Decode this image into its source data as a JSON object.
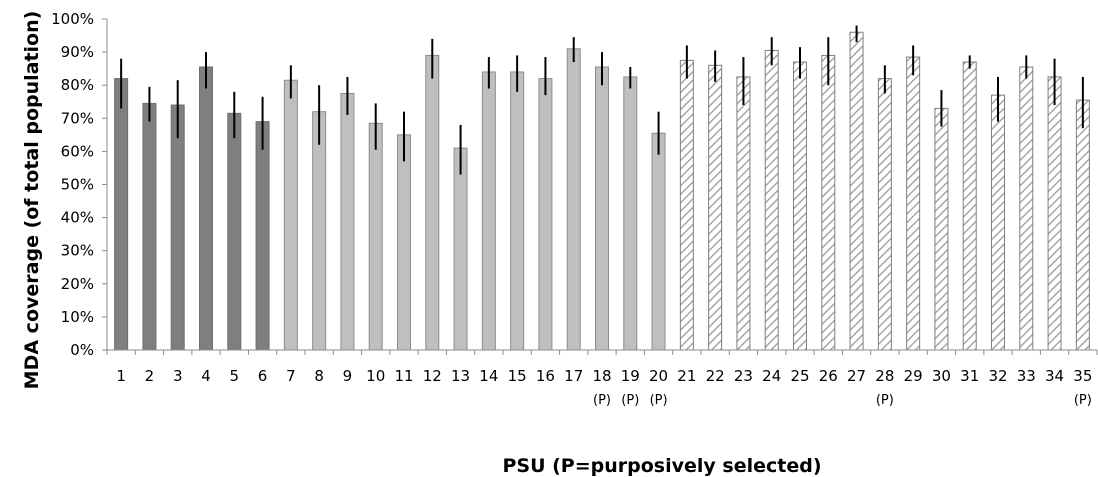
{
  "chart_data": {
    "type": "bar",
    "ylabel": "MDA coverage (of total population)",
    "xlabel": "PSU (P=purposively selected)",
    "ylim": [
      0,
      100
    ],
    "yticks": [
      "0%",
      "10%",
      "20%",
      "30%",
      "40%",
      "50%",
      "60%",
      "70%",
      "80%",
      "90%",
      "100%"
    ],
    "categories": [
      "1",
      "2",
      "3",
      "4",
      "5",
      "6",
      "7",
      "8",
      "9",
      "10",
      "11",
      "12",
      "13",
      "14",
      "15",
      "16",
      "17",
      "18",
      "19",
      "20",
      "21",
      "22",
      "23",
      "24",
      "25",
      "26",
      "27",
      "28",
      "29",
      "30",
      "31",
      "32",
      "33",
      "34",
      "35"
    ],
    "sublabels": [
      "",
      "",
      "",
      "",
      "",
      "",
      "",
      "",
      "",
      "",
      "",
      "",
      "",
      "",
      "",
      "",
      "",
      "(P)",
      "(P)",
      "(P)",
      "",
      "",
      "",
      "",
      "",
      "",
      "",
      "(P)",
      "",
      "",
      "",
      "",
      "",
      "",
      "(P)"
    ],
    "values": [
      82,
      74.5,
      74,
      85.5,
      71.5,
      69,
      81.5,
      72,
      77.5,
      68.5,
      65,
      89,
      61,
      84,
      84,
      82,
      91,
      85.5,
      82.5,
      65.5,
      87.5,
      86,
      82.5,
      90.5,
      87,
      89,
      96,
      82,
      88.5,
      73,
      87,
      77,
      85.5,
      82.5,
      75.5
    ],
    "err_low": [
      73,
      69,
      64,
      79,
      64,
      60.5,
      76,
      62,
      71,
      60.5,
      57,
      82,
      53,
      79,
      78,
      77,
      87,
      80,
      79,
      59,
      82,
      81,
      74,
      86,
      82,
      80,
      93,
      77.5,
      83,
      67.5,
      85,
      69,
      82,
      74,
      67
    ],
    "err_high": [
      88,
      79.5,
      81.5,
      90,
      78,
      76.5,
      86,
      80,
      82.5,
      74.5,
      72,
      94,
      68,
      88.5,
      89,
      88.5,
      94.5,
      90,
      85.5,
      72,
      92,
      90.5,
      88.5,
      94.5,
      91.5,
      94.5,
      98,
      86,
      92,
      78.5,
      89,
      82.5,
      89,
      88,
      82.5
    ],
    "groups": [
      {
        "range": [
          1,
          6
        ],
        "style": "solid-dark",
        "color": "#7f7f7f"
      },
      {
        "range": [
          7,
          20
        ],
        "style": "solid-light",
        "color": "#bfbfbf"
      },
      {
        "range": [
          21,
          35
        ],
        "style": "hatched",
        "color": "#a6a6a6"
      }
    ],
    "grid": false
  }
}
